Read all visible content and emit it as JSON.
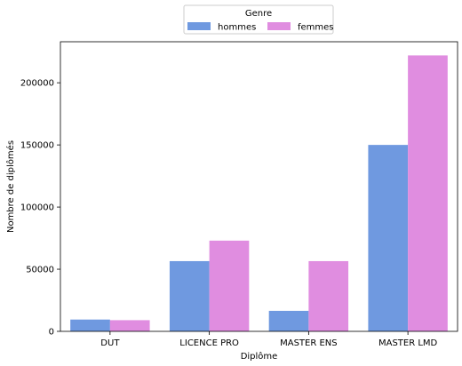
{
  "chart_data": {
    "type": "bar",
    "categories": [
      "DUT",
      "LICENCE PRO",
      "MASTER ENS",
      "MASTER LMD"
    ],
    "series": [
      {
        "name": "hommes",
        "color": "#6f99e0",
        "values": [
          9500,
          56500,
          16500,
          150000
        ]
      },
      {
        "name": "femmes",
        "color": "#e08de0",
        "values": [
          9000,
          73000,
          56500,
          222000
        ]
      }
    ],
    "xlabel": "Diplôme",
    "ylabel": "Nombre de diplômés",
    "ylim": [
      0,
      233000
    ],
    "yticks": [
      0,
      50000,
      100000,
      150000,
      200000
    ],
    "legend": {
      "title": "Genre",
      "placement": "top-center, outside plot"
    },
    "grid": false
  }
}
